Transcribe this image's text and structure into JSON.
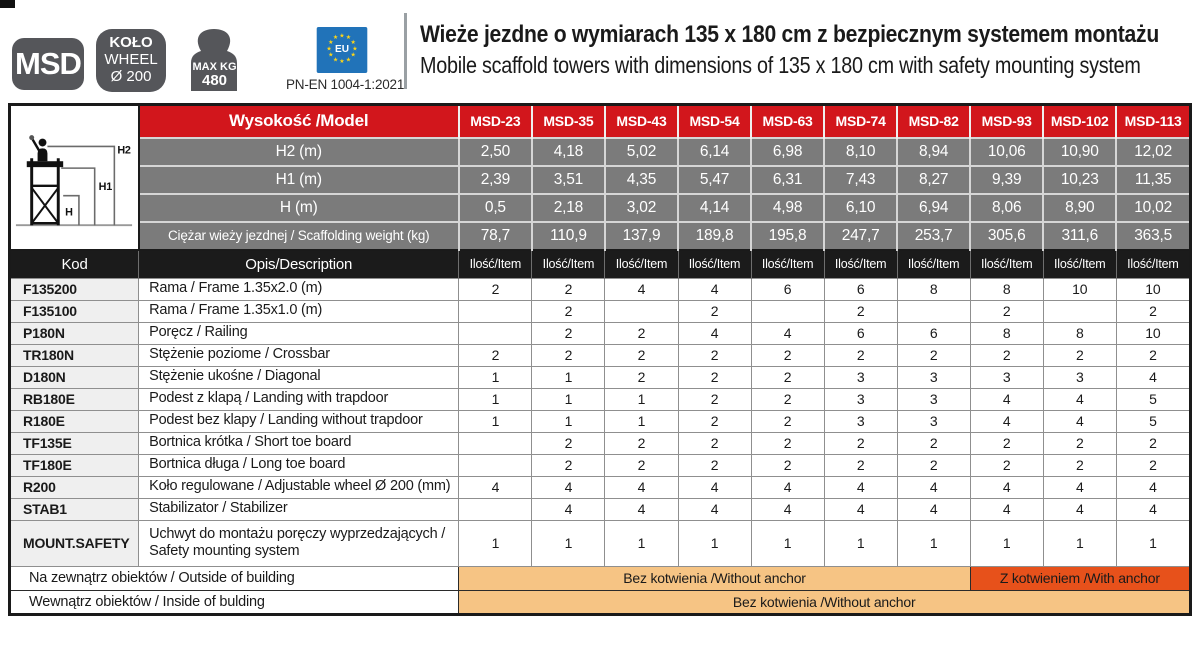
{
  "header": {
    "badges": {
      "msd": "MSD",
      "wheel": [
        "KOŁO",
        "WHEEL",
        "Ø 200"
      ],
      "max_load": [
        "MAX KG",
        "480"
      ],
      "eu": "EU",
      "norm": "PN-EN 1004-1:2021"
    },
    "title": "Wieże jezdne o wymiarach 135 x 180 cm z bezpiecznym systemem montażu",
    "subtitle": "Mobile scaffold towers with dimensions of 135 x 180 cm with safety mounting system"
  },
  "table": {
    "model_header_label": "Wysokość /Model",
    "models": [
      "MSD-23",
      "MSD-35",
      "MSD-43",
      "MSD-54",
      "MSD-63",
      "MSD-74",
      "MSD-82",
      "MSD-93",
      "MSD-102",
      "MSD-113"
    ],
    "diagram_labels": {
      "h2": "H2",
      "h1": "H1",
      "h": "H"
    },
    "spec_rows": [
      {
        "label": "H2 (m)",
        "values": [
          "2,50",
          "4,18",
          "5,02",
          "6,14",
          "6,98",
          "8,10",
          "8,94",
          "10,06",
          "10,90",
          "12,02"
        ]
      },
      {
        "label": "H1 (m)",
        "values": [
          "2,39",
          "3,51",
          "4,35",
          "5,47",
          "6,31",
          "7,43",
          "8,27",
          "9,39",
          "10,23",
          "11,35"
        ]
      },
      {
        "label": "H (m)",
        "values": [
          "0,5",
          "2,18",
          "3,02",
          "4,14",
          "4,98",
          "6,10",
          "6,94",
          "8,06",
          "8,90",
          "10,02"
        ]
      },
      {
        "label": "Ciężar wieży jezdnej / Scaffolding weight (kg)",
        "values": [
          "78,7",
          "110,9",
          "137,9",
          "189,8",
          "195,8",
          "247,7",
          "253,7",
          "305,6",
          "311,6",
          "363,5"
        ]
      }
    ],
    "columns_header": {
      "kod": "Kod",
      "opis": "Opis/Description",
      "item": "Ilość/Item"
    },
    "part_rows": [
      {
        "code": "F135200",
        "desc": "Rama / Frame 1.35x2.0 (m)",
        "values": [
          "2",
          "2",
          "4",
          "4",
          "6",
          "6",
          "8",
          "8",
          "10",
          "10"
        ]
      },
      {
        "code": "F135100",
        "desc": "Rama / Frame 1.35x1.0 (m)",
        "values": [
          "",
          "2",
          "",
          "2",
          "",
          "2",
          "",
          "2",
          "",
          "2"
        ]
      },
      {
        "code": "P180N",
        "desc": "Poręcz / Railing",
        "values": [
          "",
          "2",
          "2",
          "4",
          "4",
          "6",
          "6",
          "8",
          "8",
          "10"
        ]
      },
      {
        "code": "TR180N",
        "desc": "Stężenie poziome / Crossbar",
        "values": [
          "2",
          "2",
          "2",
          "2",
          "2",
          "2",
          "2",
          "2",
          "2",
          "2"
        ]
      },
      {
        "code": "D180N",
        "desc": "Stężenie ukośne / Diagonal",
        "values": [
          "1",
          "1",
          "2",
          "2",
          "2",
          "3",
          "3",
          "3",
          "3",
          "4"
        ]
      },
      {
        "code": "RB180E",
        "desc": "Podest z klapą / Landing with trapdoor",
        "values": [
          "1",
          "1",
          "1",
          "2",
          "2",
          "3",
          "3",
          "4",
          "4",
          "5"
        ]
      },
      {
        "code": "R180E",
        "desc": "Podest bez klapy / Landing without trapdoor",
        "values": [
          "1",
          "1",
          "1",
          "2",
          "2",
          "3",
          "3",
          "4",
          "4",
          "5"
        ]
      },
      {
        "code": "TF135E",
        "desc": "Bortnica krótka / Short toe board",
        "values": [
          "",
          "2",
          "2",
          "2",
          "2",
          "2",
          "2",
          "2",
          "2",
          "2"
        ]
      },
      {
        "code": "TF180E",
        "desc": "Bortnica długa / Long toe board",
        "values": [
          "",
          "2",
          "2",
          "2",
          "2",
          "2",
          "2",
          "2",
          "2",
          "2"
        ]
      },
      {
        "code": "R200",
        "desc": "Koło regulowane / Adjustable wheel Ø 200 (mm)",
        "values": [
          "4",
          "4",
          "4",
          "4",
          "4",
          "4",
          "4",
          "4",
          "4",
          "4"
        ]
      },
      {
        "code": "STAB1",
        "desc": "Stabilizator / Stabilizer",
        "values": [
          "",
          "4",
          "4",
          "4",
          "4",
          "4",
          "4",
          "4",
          "4",
          "4"
        ]
      },
      {
        "code": "MOUNT.SAFETY",
        "desc": "Uchwyt do montażu poręczy wyprzedzających / Safety mounting system",
        "values": [
          "1",
          "1",
          "1",
          "1",
          "1",
          "1",
          "1",
          "1",
          "1",
          "1"
        ]
      }
    ],
    "anchor_rows": [
      {
        "label": "Na zewnątrz obiektów / Outside of building",
        "cells": [
          {
            "text": "Bez kotwienia /Without anchor",
            "span": 7,
            "type": "light"
          },
          {
            "text": "Z kotwieniem /With anchor",
            "span": 3,
            "type": "dark"
          }
        ]
      },
      {
        "label": "Wewnątrz obiektów  / Inside of bulding",
        "cells": [
          {
            "text": "Bez kotwienia /Without anchor",
            "span": 10,
            "type": "light"
          }
        ]
      }
    ]
  },
  "colors": {
    "header_red": "#d2161c",
    "row_gray": "#7b7b7b",
    "header_black": "#1b1b1b",
    "code_bg": "#efefef",
    "orange_light": "#f6c484",
    "orange_dark": "#e7511b",
    "badge_gray": "#55565a",
    "eu_blue": "#2173b9",
    "star_yellow": "#ffd617"
  }
}
